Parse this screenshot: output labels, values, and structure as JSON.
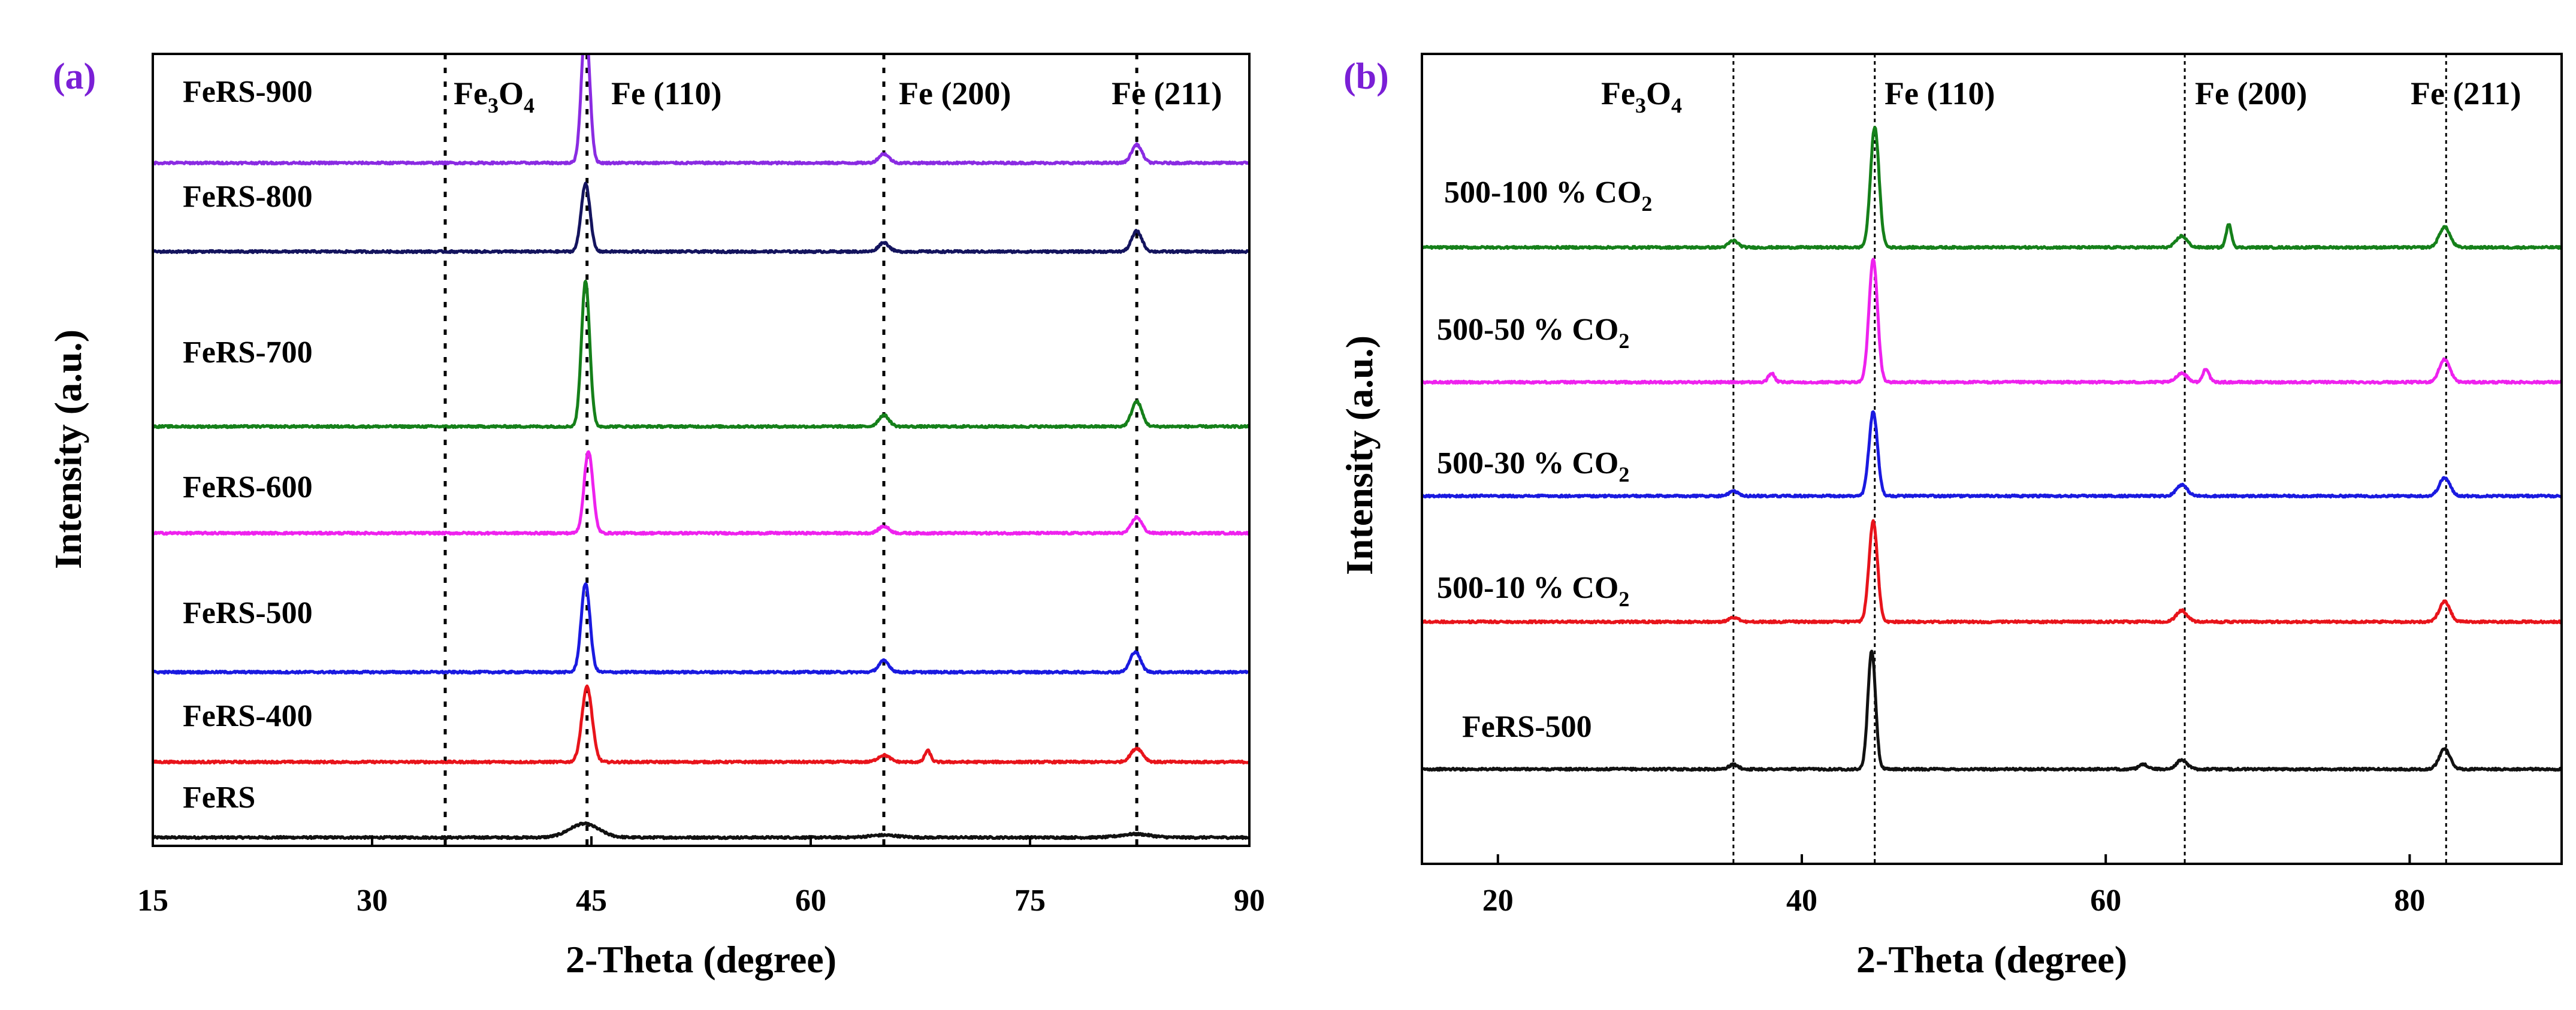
{
  "colors": {
    "black": "#111111",
    "red": "#e8141b",
    "blue": "#1a1ae0",
    "magenta": "#ee22ee",
    "green": "#15801a",
    "navy": "#14145e",
    "purple": "#8a2be2",
    "label_purple": "#7a1fd6"
  },
  "chart_data": [
    {
      "panel": "(a)",
      "type": "line",
      "xlabel": "2-Theta (degree)",
      "ylabel": "Intensity (a.u.)",
      "xlim": [
        15,
        90
      ],
      "xticks": [
        15,
        30,
        45,
        60,
        75,
        90
      ],
      "xtick_labels": [
        "15",
        "30",
        "45",
        "60",
        "75",
        "90"
      ],
      "reference_lines": [
        {
          "x": 35.0,
          "label": "Fe",
          "sub": "3",
          "label2": "O",
          "sub2": "4"
        },
        {
          "x": 44.7,
          "label": "Fe (110)"
        },
        {
          "x": 65.0,
          "label": "Fe (200)"
        },
        {
          "x": 82.3,
          "label": "Fe (211)"
        }
      ],
      "series": [
        {
          "name": "FeRS",
          "color": "black",
          "offset": 0,
          "peaks": [
            [
              44.5,
              6,
              1.0
            ],
            [
              65.0,
              1,
              1.0
            ],
            [
              82.2,
              1.5,
              1.0
            ]
          ]
        },
        {
          "name": "FeRS-400",
          "color": "red",
          "offset": 1,
          "peaks": [
            [
              44.7,
              33,
              0.35
            ],
            [
              65.0,
              3,
              0.4
            ],
            [
              68.0,
              5,
              0.2
            ],
            [
              82.3,
              6,
              0.4
            ]
          ]
        },
        {
          "name": "FeRS-500",
          "color": "blue",
          "offset": 2,
          "peaks": [
            [
              44.6,
              39,
              0.3
            ],
            [
              65.0,
              5,
              0.35
            ],
            [
              82.2,
              9,
              0.35
            ]
          ]
        },
        {
          "name": "FeRS-600",
          "color": "magenta",
          "offset": 3,
          "peaks": [
            [
              44.8,
              36,
              0.3
            ],
            [
              65.0,
              3,
              0.35
            ],
            [
              82.3,
              7,
              0.35
            ]
          ]
        },
        {
          "name": "FeRS-700",
          "color": "green",
          "offset": 4,
          "peaks": [
            [
              44.6,
              64,
              0.28
            ],
            [
              65.0,
              5,
              0.35
            ],
            [
              82.3,
              11,
              0.35
            ]
          ]
        },
        {
          "name": "FeRS-800",
          "color": "navy",
          "offset": 5,
          "peaks": [
            [
              44.6,
              30,
              0.3
            ],
            [
              65.0,
              4,
              0.35
            ],
            [
              82.3,
              9,
              0.35
            ]
          ]
        },
        {
          "name": "FeRS-900",
          "color": "purple",
          "offset": 6,
          "peaks": [
            [
              44.6,
              62,
              0.28
            ],
            [
              65.0,
              4,
              0.35
            ],
            [
              82.3,
              8,
              0.35
            ]
          ]
        }
      ]
    },
    {
      "panel": "(b)",
      "type": "line",
      "xlabel": "2-Theta (degree)",
      "ylabel": "Intensity (a.u.)",
      "xlim": [
        15,
        90
      ],
      "xticks": [
        20,
        40,
        60,
        80
      ],
      "xtick_labels": [
        "20",
        "40",
        "60",
        "80"
      ],
      "reference_lines": [
        {
          "x": 35.5,
          "label": "Fe",
          "sub": "3",
          "label2": "O",
          "sub2": "4"
        },
        {
          "x": 44.8,
          "label": "Fe (110)"
        },
        {
          "x": 65.2,
          "label": "Fe (200)"
        },
        {
          "x": 82.4,
          "label": "Fe (211)"
        }
      ],
      "series": [
        {
          "name": "FeRS-500",
          "color": "black",
          "offset": 0,
          "peaks": [
            [
              35.5,
              2,
              0.3
            ],
            [
              44.6,
              52,
              0.25
            ],
            [
              62.5,
              2,
              0.3
            ],
            [
              65.0,
              4,
              0.35
            ],
            [
              82.3,
              9,
              0.35
            ]
          ]
        },
        {
          "name": "500-10 % CO",
          "sub": "2",
          "color": "red",
          "offset": 1,
          "peaks": [
            [
              35.5,
              2,
              0.3
            ],
            [
              44.7,
              44,
              0.28
            ],
            [
              65.0,
              5,
              0.35
            ],
            [
              82.3,
              9,
              0.35
            ]
          ]
        },
        {
          "name": "500-30 % CO",
          "sub": "2",
          "color": "blue",
          "offset": 2,
          "peaks": [
            [
              35.5,
              2,
              0.3
            ],
            [
              44.7,
              37,
              0.28
            ],
            [
              65.0,
              5,
              0.35
            ],
            [
              82.3,
              8,
              0.35
            ]
          ]
        },
        {
          "name": "500-50 % CO",
          "sub": "2",
          "color": "magenta",
          "offset": 3,
          "peaks": [
            [
              38.0,
              4,
              0.2
            ],
            [
              44.7,
              54,
              0.28
            ],
            [
              65.0,
              4,
              0.35
            ],
            [
              66.6,
              6,
              0.2
            ],
            [
              82.3,
              10,
              0.35
            ]
          ]
        },
        {
          "name": "500-100 % CO",
          "sub": "2",
          "color": "green",
          "offset": 4,
          "peaks": [
            [
              35.5,
              3,
              0.3
            ],
            [
              44.8,
              53,
              0.28
            ],
            [
              65.0,
              5,
              0.35
            ],
            [
              68.1,
              10,
              0.18
            ],
            [
              82.3,
              9,
              0.35
            ]
          ]
        }
      ]
    }
  ]
}
